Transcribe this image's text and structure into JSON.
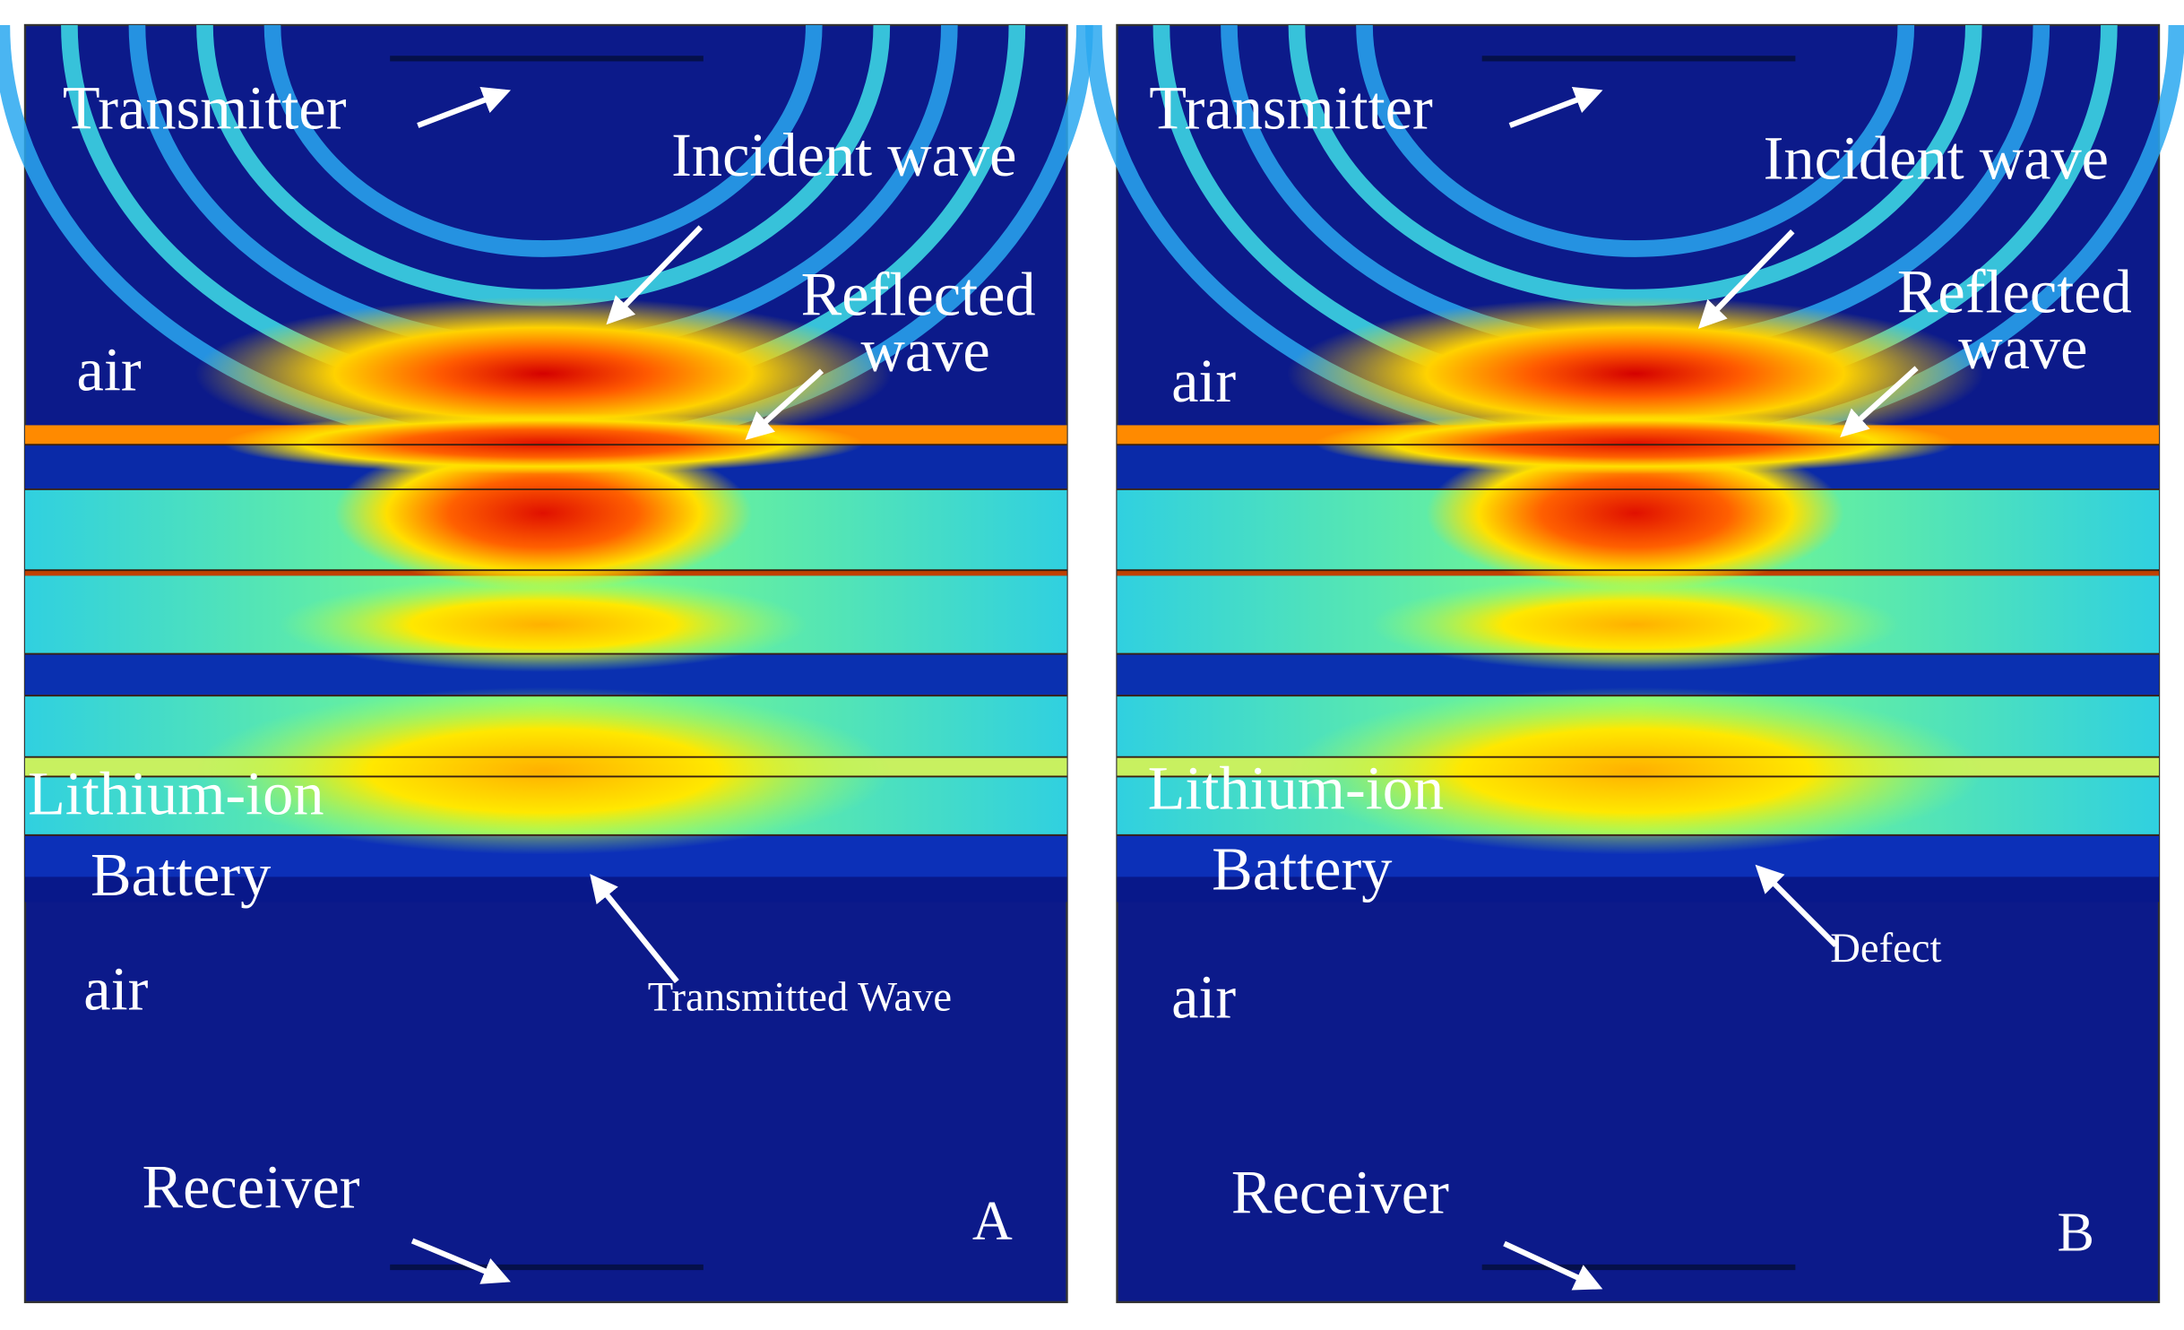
{
  "panels": [
    {
      "transmitter": "Transmitter",
      "incident": "Incident wave",
      "reflected_1": "Reflected",
      "reflected_2": "wave",
      "air_top": "air",
      "battery_1": "Lithium-ion",
      "battery_2": "Battery",
      "arrow_label": "Transmitted Wave",
      "air_bottom": "air",
      "receiver": "Receiver",
      "letter": "A"
    },
    {
      "transmitter": "Transmitter",
      "incident": "Incident wave",
      "reflected_1": "Reflected",
      "reflected_2": "wave",
      "air_top": "air",
      "battery_1": "Lithium-ion",
      "battery_2": "Battery",
      "arrow_label": "Defect",
      "air_bottom": "air",
      "receiver": "Receiver",
      "letter": "B"
    }
  ]
}
